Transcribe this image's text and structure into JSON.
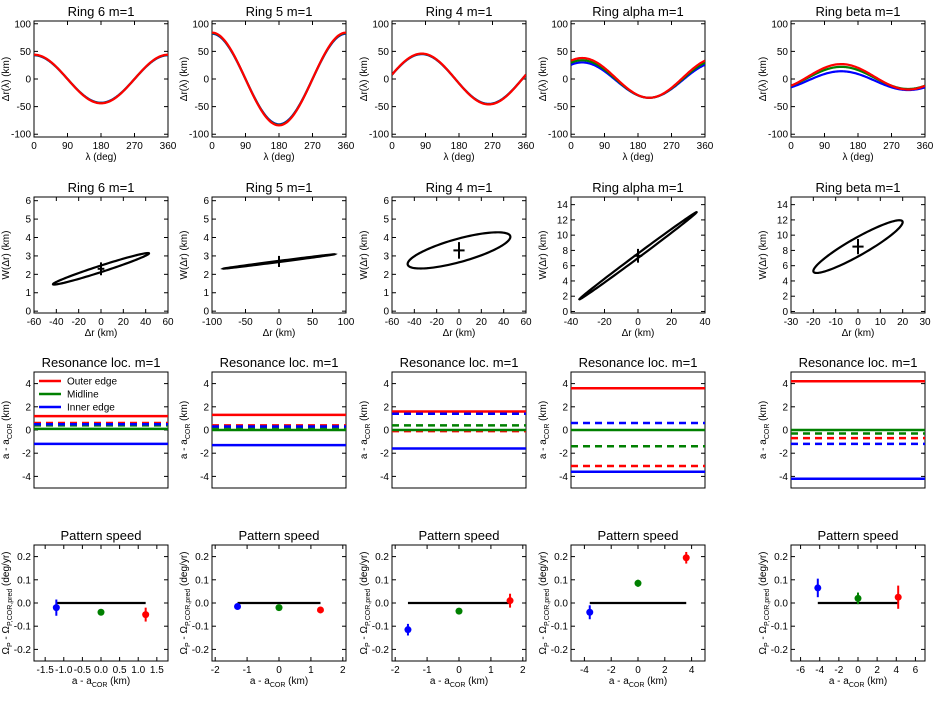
{
  "colors": {
    "outer": "#ff0000",
    "mid": "#008000",
    "inner": "#0000ff",
    "black": "#000000"
  },
  "chart_data": [
    {
      "type": "line",
      "row": "rotation",
      "ring": "6",
      "title": "Ring 6 m=1",
      "xlabel": "λ (deg)",
      "ylabel": "Δr(λ) (km)",
      "xlim": [
        0,
        360
      ],
      "ylim": [
        -105,
        105
      ],
      "xticks": [
        0,
        90,
        180,
        270,
        360
      ],
      "yticks": [
        -100,
        -50,
        0,
        50,
        100
      ],
      "grid": false,
      "series": [
        {
          "color_key": "inner",
          "amplitude": 43,
          "peak_deg": 0,
          "offset": 0
        },
        {
          "color_key": "mid",
          "amplitude": 43.5,
          "peak_deg": 0,
          "offset": 0
        },
        {
          "color_key": "outer",
          "amplitude": 44,
          "peak_deg": 0,
          "offset": 0
        }
      ]
    },
    {
      "type": "line",
      "row": "rotation",
      "ring": "5",
      "title": "Ring 5 m=1",
      "xlabel": "λ (deg)",
      "ylabel": "Δr(λ) (km)",
      "xlim": [
        0,
        360
      ],
      "ylim": [
        -105,
        105
      ],
      "xticks": [
        0,
        90,
        180,
        270,
        360
      ],
      "yticks": [
        -100,
        -50,
        0,
        50,
        100
      ],
      "grid": false,
      "series": [
        {
          "color_key": "inner",
          "amplitude": 82,
          "peak_deg": 0,
          "offset": 0
        },
        {
          "color_key": "mid",
          "amplitude": 83,
          "peak_deg": 0,
          "offset": 0
        },
        {
          "color_key": "outer",
          "amplitude": 84,
          "peak_deg": 0,
          "offset": 0
        }
      ]
    },
    {
      "type": "line",
      "row": "rotation",
      "ring": "4",
      "title": "Ring 4 m=1",
      "xlabel": "λ (deg)",
      "ylabel": "Δr(λ) (km)",
      "xlim": [
        0,
        360
      ],
      "ylim": [
        -105,
        105
      ],
      "xticks": [
        0,
        90,
        180,
        270,
        360
      ],
      "yticks": [
        -100,
        -50,
        0,
        50,
        100
      ],
      "grid": false,
      "series": [
        {
          "color_key": "inner",
          "amplitude": 45,
          "peak_deg": 80,
          "offset": 0
        },
        {
          "color_key": "mid",
          "amplitude": 45.5,
          "peak_deg": 80,
          "offset": 0
        },
        {
          "color_key": "outer",
          "amplitude": 46,
          "peak_deg": 80,
          "offset": 0
        }
      ]
    },
    {
      "type": "line",
      "row": "rotation",
      "ring": "alpha",
      "title": "Ring alpha m=1",
      "xlabel": "λ (deg)",
      "ylabel": "Δr(λ) (km)",
      "xlim": [
        0,
        360
      ],
      "ylim": [
        -105,
        105
      ],
      "xticks": [
        0,
        90,
        180,
        270,
        360
      ],
      "yticks": [
        -100,
        -50,
        0,
        50,
        100
      ],
      "grid": false,
      "series": [
        {
          "color_key": "inner",
          "amplitude": 32,
          "peak_deg": 30,
          "offset": -2
        },
        {
          "color_key": "mid",
          "amplitude": 34,
          "peak_deg": 30,
          "offset": 0
        },
        {
          "color_key": "outer",
          "amplitude": 36,
          "peak_deg": 30,
          "offset": 2
        }
      ]
    },
    {
      "type": "line",
      "row": "rotation",
      "ring": "beta",
      "title": "Ring beta m=1",
      "xlabel": "λ (deg)",
      "ylabel": "Δr(λ) (km)",
      "xlim": [
        0,
        360
      ],
      "ylim": [
        -105,
        105
      ],
      "xticks": [
        0,
        90,
        180,
        270,
        360
      ],
      "yticks": [
        -100,
        -50,
        0,
        50,
        100
      ],
      "grid": false,
      "series": [
        {
          "color_key": "inner",
          "amplitude": 17,
          "peak_deg": 135,
          "offset": -3
        },
        {
          "color_key": "mid",
          "amplitude": 20,
          "peak_deg": 135,
          "offset": 2
        },
        {
          "color_key": "outer",
          "amplitude": 23,
          "peak_deg": 135,
          "offset": 4
        }
      ]
    },
    {
      "type": "line",
      "row": "width",
      "ring": "6",
      "title": "Ring 6 m=1",
      "xlabel": "Δr (km)",
      "ylabel": "W(Δr) (km)",
      "xlim": [
        -60,
        60
      ],
      "ylim": [
        -0.1,
        6.2
      ],
      "xticks": [
        -60,
        -40,
        -20,
        0,
        20,
        40,
        60
      ],
      "yticks": [
        0,
        1,
        2,
        3,
        4,
        5,
        6
      ],
      "grid": false,
      "ellipse": {
        "cx": 0,
        "cy": 2.3,
        "half_dx": 43,
        "slope": 0.0195,
        "half_width": 0.18
      },
      "cross": {
        "x": 0,
        "y": 2.3,
        "dx": 3,
        "dy": 0.35
      }
    },
    {
      "type": "line",
      "row": "width",
      "ring": "5",
      "title": "Ring 5 m=1",
      "xlabel": "Δr (km)",
      "ylabel": "W(Δr) (km)",
      "xlim": [
        -100,
        100
      ],
      "ylim": [
        -0.1,
        6.2
      ],
      "xticks": [
        -100,
        -50,
        0,
        50,
        100
      ],
      "yticks": [
        0,
        1,
        2,
        3,
        4,
        5,
        6
      ],
      "grid": false,
      "ellipse": {
        "cx": 0,
        "cy": 2.7,
        "half_dx": 83,
        "slope": 0.0047,
        "half_width": 0.03
      },
      "cross": {
        "x": 0,
        "y": 2.7,
        "dx": 5,
        "dy": 0.3
      }
    },
    {
      "type": "line",
      "row": "width",
      "ring": "4",
      "title": "Ring 4 m=1",
      "xlabel": "Δr (km)",
      "ylabel": "W(Δr) (km)",
      "xlim": [
        -60,
        60
      ],
      "ylim": [
        -0.1,
        6.2
      ],
      "xticks": [
        -60,
        -40,
        -20,
        0,
        20,
        40,
        60
      ],
      "yticks": [
        0,
        1,
        2,
        3,
        4,
        5,
        6
      ],
      "grid": false,
      "ellipse": {
        "cx": 0,
        "cy": 3.3,
        "half_dx": 46,
        "slope": 0.016,
        "half_width": 0.65
      },
      "cross": {
        "x": 0,
        "y": 3.3,
        "dx": 5,
        "dy": 0.45
      }
    },
    {
      "type": "line",
      "row": "width",
      "ring": "alpha",
      "title": "Ring alpha m=1",
      "xlabel": "Δr (km)",
      "ylabel": "W(Δr) (km)",
      "xlim": [
        -40,
        40
      ],
      "ylim": [
        -0.2,
        15
      ],
      "xticks": [
        -40,
        -20,
        0,
        20,
        40
      ],
      "yticks": [
        0,
        2,
        4,
        6,
        8,
        10,
        12,
        14
      ],
      "grid": false,
      "ellipse": {
        "cx": 0,
        "cy": 7.3,
        "half_dx": 35,
        "slope": 0.163,
        "half_width": 0.3
      },
      "cross": {
        "x": 0,
        "y": 7.3,
        "dx": 2.5,
        "dy": 0.9
      }
    },
    {
      "type": "line",
      "row": "width",
      "ring": "beta",
      "title": "Ring beta m=1",
      "xlabel": "Δr (km)",
      "ylabel": "W(Δr) (km)",
      "xlim": [
        -30,
        30
      ],
      "ylim": [
        -0.2,
        15
      ],
      "xticks": [
        -30,
        -20,
        -10,
        0,
        10,
        20,
        30
      ],
      "yticks": [
        0,
        2,
        4,
        6,
        8,
        10,
        12,
        14
      ],
      "grid": false,
      "ellipse": {
        "cx": 0,
        "cy": 8.5,
        "half_dx": 20,
        "slope": 0.16,
        "half_width": 1.3
      },
      "cross": {
        "x": 0,
        "y": 8.5,
        "dx": 2.5,
        "dy": 1.0
      }
    },
    {
      "type": "line",
      "row": "resonance",
      "ring": "6",
      "title": "Resonance loc. m=1",
      "xlabel": "",
      "ylabel": "a - a_COR (km)",
      "ylim": [
        -5,
        5
      ],
      "yticks": [
        -4,
        -2,
        0,
        2,
        4
      ],
      "grid": false,
      "legend": {
        "position": "top-left",
        "entries": [
          {
            "name": "Outer edge",
            "color_key": "outer"
          },
          {
            "name": "Midline",
            "color_key": "mid"
          },
          {
            "name": "Inner edge",
            "color_key": "inner"
          }
        ]
      },
      "series": [
        {
          "name": "Outer edge",
          "color_key": "outer",
          "solid": 1.2,
          "dashed": 0.6
        },
        {
          "name": "Midline",
          "color_key": "mid",
          "solid": 0.1,
          "dashed": 0.4
        },
        {
          "name": "Inner edge",
          "color_key": "inner",
          "solid": -1.2,
          "dashed": 0.5
        }
      ]
    },
    {
      "type": "line",
      "row": "resonance",
      "ring": "5",
      "title": "Resonance loc. m=1",
      "xlabel": "",
      "ylabel": "a - a_COR (km)",
      "ylim": [
        -5,
        5
      ],
      "yticks": [
        -4,
        -2,
        0,
        2,
        4
      ],
      "grid": false,
      "series": [
        {
          "name": "Outer edge",
          "color_key": "outer",
          "solid": 1.3,
          "dashed": 0.4
        },
        {
          "name": "Midline",
          "color_key": "mid",
          "solid": 0.0,
          "dashed": 0.2
        },
        {
          "name": "Inner edge",
          "color_key": "inner",
          "solid": -1.3,
          "dashed": 0.3
        }
      ]
    },
    {
      "type": "line",
      "row": "resonance",
      "ring": "4",
      "title": "Resonance loc. m=1",
      "xlabel": "",
      "ylabel": "a - a_COR (km)",
      "ylim": [
        -5,
        5
      ],
      "yticks": [
        -4,
        -2,
        0,
        2,
        4
      ],
      "grid": false,
      "series": [
        {
          "name": "Outer edge",
          "color_key": "outer",
          "solid": 1.6,
          "dashed": -0.1
        },
        {
          "name": "Midline",
          "color_key": "mid",
          "solid": 0.0,
          "dashed": 0.4
        },
        {
          "name": "Inner edge",
          "color_key": "inner",
          "solid": -1.6,
          "dashed": 1.4
        }
      ]
    },
    {
      "type": "line",
      "row": "resonance",
      "ring": "alpha",
      "title": "Resonance loc. m=1",
      "xlabel": "",
      "ylabel": "a - a_COR (km)",
      "ylim": [
        -5,
        5
      ],
      "yticks": [
        -4,
        -2,
        0,
        2,
        4
      ],
      "grid": false,
      "series": [
        {
          "name": "Outer edge",
          "color_key": "outer",
          "solid": 3.6,
          "dashed": -3.1
        },
        {
          "name": "Midline",
          "color_key": "mid",
          "solid": 0.0,
          "dashed": -1.4
        },
        {
          "name": "Inner edge",
          "color_key": "inner",
          "solid": -3.6,
          "dashed": 0.6
        }
      ]
    },
    {
      "type": "line",
      "row": "resonance",
      "ring": "beta",
      "title": "Resonance loc. m=1",
      "xlabel": "",
      "ylabel": "a - a_COR (km)",
      "ylim": [
        -5,
        5
      ],
      "yticks": [
        -4,
        -2,
        0,
        2,
        4
      ],
      "grid": false,
      "series": [
        {
          "name": "Outer edge",
          "color_key": "outer",
          "solid": 4.2,
          "dashed": -0.7
        },
        {
          "name": "Midline",
          "color_key": "mid",
          "solid": 0.0,
          "dashed": -0.3
        },
        {
          "name": "Inner edge",
          "color_key": "inner",
          "solid": -4.2,
          "dashed": -1.2
        }
      ]
    },
    {
      "type": "scatter",
      "row": "pattern",
      "ring": "6",
      "title": "Pattern speed",
      "xlabel": "a - a_COR (km)",
      "ylabel": "Ω_P - Ω_P,COR,pred (deg/yr)",
      "xlim": [
        -1.8,
        1.8
      ],
      "ylim": [
        -0.25,
        0.25
      ],
      "xticks": [
        -1.5,
        -1.0,
        -0.5,
        0.0,
        0.5,
        1.0,
        1.5
      ],
      "xtick_labels": [
        "-1.5",
        "-1.0",
        "-0.5",
        "0.0",
        "0.5",
        "1.0",
        "1.5"
      ],
      "yticks": [
        -0.2,
        -0.1,
        0.0,
        0.1,
        0.2
      ],
      "ytick_labels": [
        "-0.2",
        "-0.1",
        "0.0",
        "0.1",
        "0.2"
      ],
      "grid": false,
      "zero_line": [
        -1.2,
        1.2
      ],
      "points": [
        {
          "x": -1.2,
          "y": -0.02,
          "err": 0.035,
          "color_key": "inner"
        },
        {
          "x": 0.0,
          "y": -0.04,
          "err": 0.012,
          "color_key": "mid"
        },
        {
          "x": 1.2,
          "y": -0.05,
          "err": 0.03,
          "color_key": "outer"
        }
      ]
    },
    {
      "type": "scatter",
      "row": "pattern",
      "ring": "5",
      "title": "Pattern speed",
      "xlabel": "a - a_COR (km)",
      "ylabel": "Ω_P - Ω_P,COR,pred (deg/yr)",
      "xlim": [
        -2.1,
        2.1
      ],
      "ylim": [
        -0.25,
        0.25
      ],
      "xticks": [
        -2,
        -1,
        0,
        1,
        2
      ],
      "xtick_labels": [
        "-2",
        "-1",
        "0",
        "1",
        "2"
      ],
      "yticks": [
        -0.2,
        -0.1,
        0.0,
        0.1,
        0.2
      ],
      "ytick_labels": [
        "-0.2",
        "-0.1",
        "0.0",
        "0.1",
        "0.2"
      ],
      "grid": false,
      "zero_line": [
        -1.3,
        1.3
      ],
      "points": [
        {
          "x": -1.3,
          "y": -0.015,
          "err": 0.012,
          "color_key": "inner"
        },
        {
          "x": 0.0,
          "y": -0.02,
          "err": 0.008,
          "color_key": "mid"
        },
        {
          "x": 1.3,
          "y": -0.03,
          "err": 0.012,
          "color_key": "outer"
        }
      ]
    },
    {
      "type": "scatter",
      "row": "pattern",
      "ring": "4",
      "title": "Pattern speed",
      "xlabel": "a - a_COR (km)",
      "ylabel": "Ω_P - Ω_P,COR,pred (deg/yr)",
      "xlim": [
        -2.1,
        2.1
      ],
      "ylim": [
        -0.25,
        0.25
      ],
      "xticks": [
        -2,
        -1,
        0,
        1,
        2
      ],
      "xtick_labels": [
        "-2",
        "-1",
        "0",
        "1",
        "2"
      ],
      "yticks": [
        -0.2,
        -0.1,
        0.0,
        0.1,
        0.2
      ],
      "ytick_labels": [
        "-0.2",
        "-0.1",
        "0.0",
        "0.1",
        "0.2"
      ],
      "grid": false,
      "zero_line": [
        -1.6,
        1.6
      ],
      "points": [
        {
          "x": -1.6,
          "y": -0.115,
          "err": 0.025,
          "color_key": "inner"
        },
        {
          "x": 0.0,
          "y": -0.035,
          "err": 0.01,
          "color_key": "mid"
        },
        {
          "x": 1.6,
          "y": 0.01,
          "err": 0.03,
          "color_key": "outer"
        }
      ]
    },
    {
      "type": "scatter",
      "row": "pattern",
      "ring": "alpha",
      "title": "Pattern speed",
      "xlabel": "a - a_COR (km)",
      "ylabel": "Ω_P - Ω_P,COR,pred (deg/yr)",
      "xlim": [
        -5,
        5
      ],
      "ylim": [
        -0.25,
        0.25
      ],
      "xticks": [
        -4,
        -2,
        0,
        2,
        4
      ],
      "xtick_labels": [
        "-4",
        "-2",
        "0",
        "2",
        "4"
      ],
      "yticks": [
        -0.2,
        -0.1,
        0.0,
        0.1,
        0.2
      ],
      "ytick_labels": [
        "-0.2",
        "-0.1",
        "0.0",
        "0.1",
        "0.2"
      ],
      "grid": false,
      "zero_line": [
        -3.6,
        3.6
      ],
      "points": [
        {
          "x": -3.6,
          "y": -0.04,
          "err": 0.03,
          "color_key": "inner"
        },
        {
          "x": 0.0,
          "y": 0.085,
          "err": 0.015,
          "color_key": "mid"
        },
        {
          "x": 3.6,
          "y": 0.195,
          "err": 0.025,
          "color_key": "outer"
        }
      ]
    },
    {
      "type": "scatter",
      "row": "pattern",
      "ring": "beta",
      "title": "Pattern speed",
      "xlabel": "a - a_COR (km)",
      "ylabel": "Ω_P - Ω_P,COR,pred (deg/yr)",
      "xlim": [
        -7,
        7
      ],
      "ylim": [
        -0.25,
        0.25
      ],
      "xticks": [
        -6,
        -4,
        -2,
        0,
        2,
        4,
        6
      ],
      "xtick_labels": [
        "-6",
        "-4",
        "-2",
        "0",
        "2",
        "4",
        "6"
      ],
      "yticks": [
        -0.2,
        -0.1,
        0.0,
        0.1,
        0.2
      ],
      "ytick_labels": [
        "-0.2",
        "-0.1",
        "0.0",
        "0.1",
        "0.2"
      ],
      "grid": false,
      "zero_line": [
        -4.2,
        4.2
      ],
      "points": [
        {
          "x": -4.2,
          "y": 0.065,
          "err": 0.04,
          "color_key": "inner"
        },
        {
          "x": 0.0,
          "y": 0.02,
          "err": 0.025,
          "color_key": "mid"
        },
        {
          "x": 4.2,
          "y": 0.025,
          "err": 0.05,
          "color_key": "outer"
        }
      ]
    }
  ]
}
